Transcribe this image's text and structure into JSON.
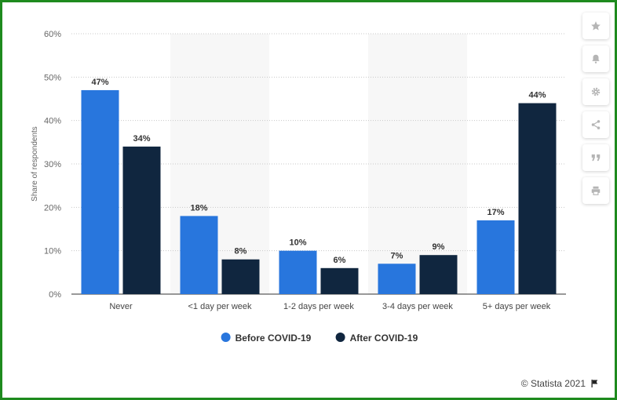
{
  "chart_data": {
    "type": "bar",
    "categories": [
      "Never",
      "<1 day per week",
      "1-2 days per week",
      "3-4 days per week",
      "5+ days per week"
    ],
    "series": [
      {
        "name": "Before COVID-19",
        "color": "#2876dd",
        "values": [
          47,
          18,
          10,
          7,
          17
        ]
      },
      {
        "name": "After COVID-19",
        "color": "#10263f",
        "values": [
          34,
          8,
          6,
          9,
          44
        ]
      }
    ],
    "ylabel": "Share of respondents",
    "ylim": [
      0,
      60
    ],
    "yticks": [
      0,
      10,
      20,
      30,
      40,
      50,
      60
    ],
    "tick_suffix": "%",
    "legend_position": "bottom-center"
  },
  "credit": {
    "text": "© Statista 2021"
  },
  "sidebar_icons": [
    "star-icon",
    "bell-icon",
    "gear-icon",
    "share-icon",
    "quote-icon",
    "print-icon"
  ]
}
